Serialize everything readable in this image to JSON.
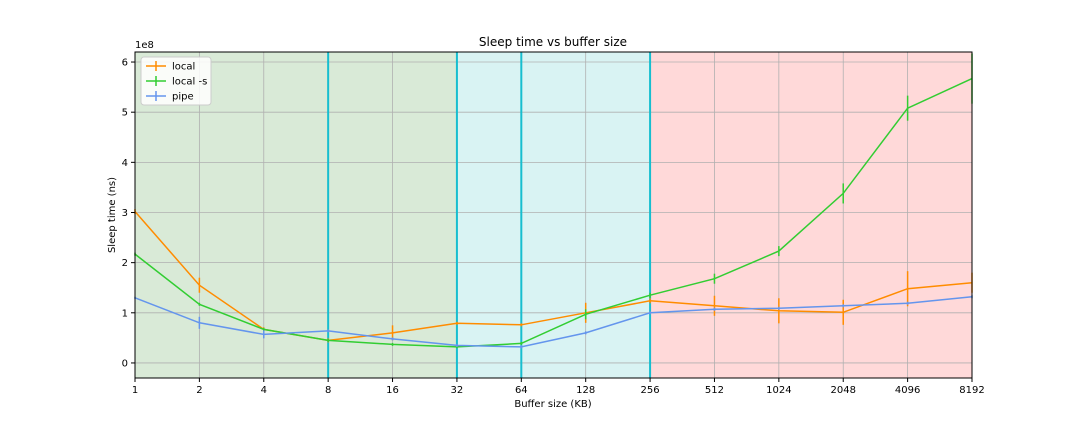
{
  "chart_data": {
    "type": "line",
    "title": "Sleep time vs buffer size",
    "xlabel": "Buffer size (KB)",
    "ylabel": "Sleep time (ns)",
    "y_multiplier_label": "1e8",
    "x_scale": "log2",
    "xlim": [
      1,
      8192
    ],
    "ylim": [
      -0.3,
      6.2
    ],
    "x_ticks": [
      1,
      2,
      4,
      8,
      16,
      32,
      64,
      128,
      256,
      512,
      1024,
      2048,
      4096,
      8192
    ],
    "x_tick_labels": [
      "1",
      "2",
      "4",
      "8",
      "16",
      "32",
      "64",
      "128",
      "256",
      "512",
      "1024",
      "2048",
      "4096",
      "8192"
    ],
    "y_ticks": [
      0,
      1,
      2,
      3,
      4,
      5,
      6
    ],
    "y_tick_labels": [
      "0",
      "1",
      "2",
      "3",
      "4",
      "5",
      "6"
    ],
    "grid": true,
    "legend_position": "upper-left",
    "regions": [
      {
        "from": 1,
        "to": 32,
        "color": "#d9ead7"
      },
      {
        "from": 32,
        "to": 256,
        "color": "#d9f3f3"
      },
      {
        "from": 256,
        "to": 8192,
        "color": "#ffd9d9"
      }
    ],
    "vlines": {
      "x": [
        8,
        32,
        64,
        256
      ],
      "color": "#17becf"
    },
    "x": [
      1,
      2,
      4,
      8,
      16,
      32,
      64,
      128,
      256,
      512,
      1024,
      2048,
      4096,
      8192
    ],
    "series": [
      {
        "name": "local",
        "color": "#ff8c00",
        "values": [
          3.02,
          1.55,
          0.67,
          0.45,
          0.6,
          0.79,
          0.76,
          1.0,
          1.24,
          1.14,
          1.04,
          1.01,
          1.48,
          1.6
        ],
        "errors": [
          0.05,
          0.15,
          0.04,
          0.04,
          0.15,
          0.03,
          0.03,
          0.2,
          0.05,
          0.2,
          0.25,
          0.25,
          0.35,
          0.2
        ]
      },
      {
        "name": "local -s",
        "color": "#32cd32",
        "values": [
          2.17,
          1.17,
          0.67,
          0.45,
          0.37,
          0.32,
          0.39,
          0.97,
          1.35,
          1.68,
          2.23,
          3.38,
          5.08,
          5.67
        ],
        "errors": [
          0.03,
          0.03,
          0.03,
          0.03,
          0.03,
          0.03,
          0.03,
          0.1,
          0.05,
          0.1,
          0.1,
          0.2,
          0.25,
          0.5
        ]
      },
      {
        "name": "pipe",
        "color": "#6495ed",
        "values": [
          1.3,
          0.8,
          0.57,
          0.64,
          0.48,
          0.35,
          0.32,
          0.6,
          1.0,
          1.07,
          1.09,
          1.14,
          1.19,
          1.32
        ],
        "errors": [
          0.02,
          0.12,
          0.08,
          0.03,
          0.03,
          0.03,
          0.03,
          0.03,
          0.03,
          0.03,
          0.03,
          0.03,
          0.03,
          0.03
        ]
      }
    ]
  }
}
